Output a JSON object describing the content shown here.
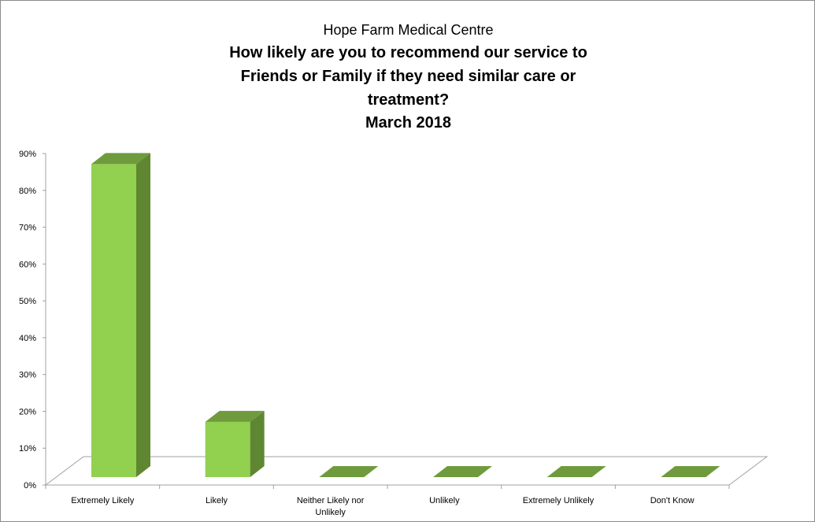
{
  "chart_data": {
    "type": "bar",
    "subtitle": "Hope Farm Medical Centre",
    "title_lines": [
      "How likely are you to recommend our service to",
      "Friends or Family if they need similar care or",
      "treatment?",
      "March 2018"
    ],
    "categories": [
      "Extremely Likely",
      "Likely",
      "Neither Likely nor Unlikely",
      "Unlikely",
      "Extremely Unlikely",
      "Don't Know"
    ],
    "category_lines": [
      [
        "Extremely Likely"
      ],
      [
        "Likely"
      ],
      [
        "Neither Likely nor",
        "Unlikely"
      ],
      [
        "Unlikely"
      ],
      [
        "Extremely Unlikely"
      ],
      [
        "Don't Know"
      ]
    ],
    "values": [
      85,
      15,
      0,
      0,
      0,
      0
    ],
    "ylim": [
      0,
      90
    ],
    "yticks": [
      "0%",
      "10%",
      "20%",
      "30%",
      "40%",
      "50%",
      "60%",
      "70%",
      "80%",
      "90%"
    ],
    "xlabel": "",
    "ylabel": "",
    "colors": {
      "front": "#92d050",
      "side": "#5f8732",
      "top": "#6f9b3c"
    }
  }
}
